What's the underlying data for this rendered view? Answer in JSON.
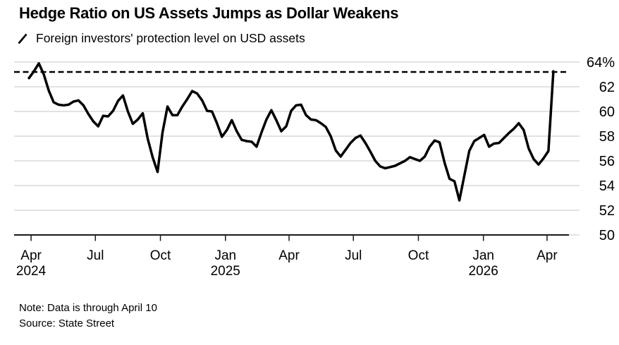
{
  "footer": {
    "note": "Note: Data is through April 10",
    "source": "Source: State Street"
  },
  "chart_data": {
    "type": "line",
    "title": "Hedge Ratio on US Assets Jumps as Dollar Weakens",
    "grid": true,
    "legend_position": "top-left",
    "y_axis": {
      "min": 50,
      "max": 64,
      "unit": "%",
      "ticks": [
        {
          "value": 64,
          "label": "64%"
        },
        {
          "value": 62,
          "label": "62"
        },
        {
          "value": 60,
          "label": "60"
        },
        {
          "value": 58,
          "label": "58"
        },
        {
          "value": 56,
          "label": "56"
        },
        {
          "value": 54,
          "label": "54"
        },
        {
          "value": 52,
          "label": "52"
        },
        {
          "value": 50,
          "label": "50"
        }
      ]
    },
    "x_axis": {
      "domain_start": "2024-03-08",
      "domain_end": "2026-05-01",
      "ticks": [
        {
          "date": "2024-04-01",
          "label": "Apr",
          "year": "2024"
        },
        {
          "date": "2024-07-01",
          "label": "Jul"
        },
        {
          "date": "2024-10-01",
          "label": "Oct"
        },
        {
          "date": "2025-01-01",
          "label": "Jan",
          "year": "2025"
        },
        {
          "date": "2025-04-01",
          "label": "Apr"
        },
        {
          "date": "2025-07-01",
          "label": "Jul"
        },
        {
          "date": "2025-10-01",
          "label": "Oct"
        },
        {
          "date": "2026-01-01",
          "label": "Jan",
          "year": "2026"
        },
        {
          "date": "2026-04-01",
          "label": "Apr"
        }
      ]
    },
    "reference_line": {
      "value": 63.2,
      "style": "dashed",
      "color": "#000000"
    },
    "series": [
      {
        "name": "Foreign investors' protection level on USD assets",
        "unit": "%",
        "start_date": "2024-03-29",
        "interval_days": 7,
        "values": [
          62.7,
          63.25,
          63.9,
          63.0,
          61.7,
          60.75,
          60.55,
          60.5,
          60.55,
          60.8,
          60.9,
          60.5,
          59.8,
          59.2,
          58.8,
          59.65,
          59.6,
          60.05,
          60.85,
          61.3,
          60.0,
          59.0,
          59.35,
          59.85,
          57.8,
          56.3,
          55.1,
          58.3,
          60.4,
          59.7,
          59.7,
          60.4,
          61.0,
          61.65,
          61.45,
          60.9,
          60.05,
          60.0,
          59.05,
          57.95,
          58.5,
          59.3,
          58.4,
          57.7,
          57.6,
          57.55,
          57.15,
          58.3,
          59.35,
          60.1,
          59.3,
          58.4,
          58.8,
          60.05,
          60.5,
          60.55,
          59.7,
          59.35,
          59.3,
          59.05,
          58.75,
          58.0,
          56.85,
          56.35,
          56.9,
          57.45,
          57.85,
          58.05,
          57.45,
          56.75,
          56.0,
          55.55,
          55.4,
          55.5,
          55.6,
          55.8,
          56.0,
          56.3,
          56.15,
          56.0,
          56.35,
          57.15,
          57.65,
          57.5,
          55.85,
          54.55,
          54.35,
          52.8,
          54.8,
          56.8,
          57.6,
          57.85,
          58.1,
          57.15,
          57.4,
          57.45,
          57.85,
          58.25,
          58.6,
          59.05,
          58.5,
          57.0,
          56.15,
          55.7,
          56.2,
          56.8,
          63.25
        ]
      }
    ],
    "colors": {
      "line": "#000000",
      "grid": "#d9d9d9",
      "axis": "#1a1a1a",
      "text": "#000000",
      "background": "#ffffff"
    }
  }
}
